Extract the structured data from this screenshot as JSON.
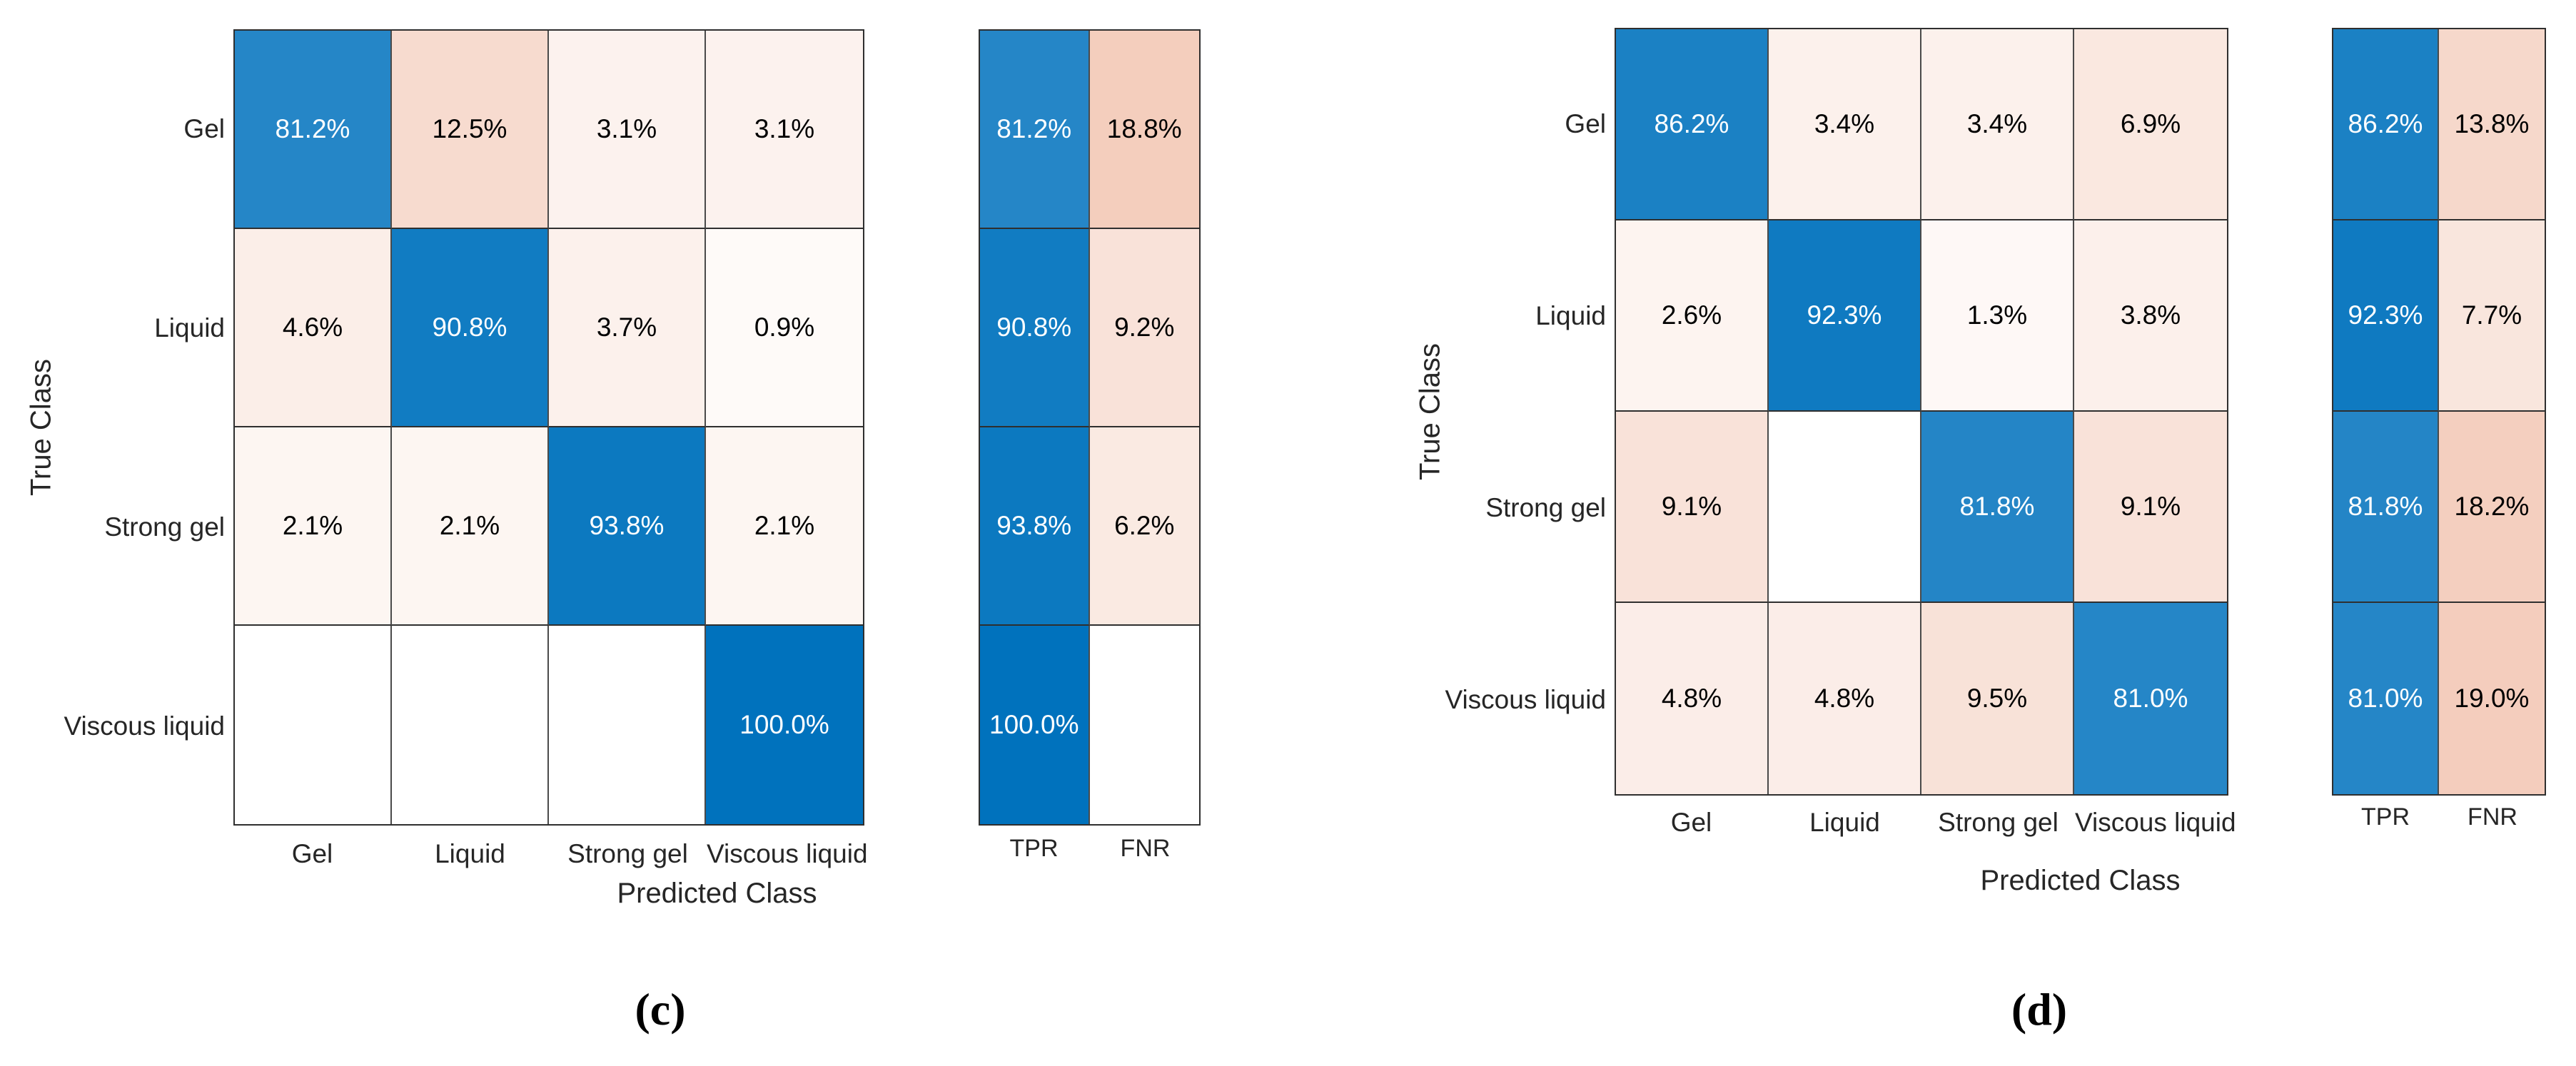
{
  "colors": {
    "diagonal_base": "#0072BD",
    "off_diagonal_base": "#D95319",
    "text_on_diagonal": "#FFFFFF",
    "text_on_off_diagonal": "#000000",
    "grid_line": "#2F2F2F"
  },
  "panels": [
    {
      "id": "c",
      "caption": "(c)",
      "x_axis_title": "Predicted Class",
      "y_axis_title": "True Class",
      "row_labels": [
        "Gel",
        "Liquid",
        "Strong gel",
        "Viscous liquid"
      ],
      "col_labels": [
        "Gel",
        "Liquid",
        "Strong gel",
        "Viscous liquid"
      ],
      "summary_col_labels": [
        "TPR",
        "FNR"
      ],
      "cells": [
        [
          {
            "label": "81.2%",
            "bg": "#2586C7",
            "fg": "#FFFFFF"
          },
          {
            "label": "12.5%",
            "bg": "#F7DBCF",
            "fg": "#000000"
          },
          {
            "label": "3.1%",
            "bg": "#FCF2EE",
            "fg": "#000000"
          },
          {
            "label": "3.1%",
            "bg": "#FCF2EE",
            "fg": "#000000"
          }
        ],
        [
          {
            "label": "4.6%",
            "bg": "#FBEEE8",
            "fg": "#000000"
          },
          {
            "label": "90.8%",
            "bg": "#117CC2",
            "fg": "#FFFFFF"
          },
          {
            "label": "3.7%",
            "bg": "#FCF1EC",
            "fg": "#000000"
          },
          {
            "label": "0.9%",
            "bg": "#FEFAF8",
            "fg": "#000000"
          }
        ],
        [
          {
            "label": "2.1%",
            "bg": "#FDF6F2",
            "fg": "#000000"
          },
          {
            "label": "2.1%",
            "bg": "#FDF6F2",
            "fg": "#000000"
          },
          {
            "label": "93.8%",
            "bg": "#0C79C0",
            "fg": "#FFFFFF"
          },
          {
            "label": "2.1%",
            "bg": "#FDF6F2",
            "fg": "#000000"
          }
        ],
        [
          {
            "label": "",
            "bg": "#FFFFFF",
            "fg": "#000000"
          },
          {
            "label": "",
            "bg": "#FFFFFF",
            "fg": "#000000"
          },
          {
            "label": "",
            "bg": "#FFFFFF",
            "fg": "#000000"
          },
          {
            "label": "100.0%",
            "bg": "#0072BD",
            "fg": "#FFFFFF"
          }
        ]
      ],
      "summary_cells": [
        [
          {
            "label": "81.2%",
            "bg": "#2586C7",
            "fg": "#FFFFFF"
          },
          {
            "label": "18.8%",
            "bg": "#F4CEBD",
            "fg": "#000000"
          }
        ],
        [
          {
            "label": "90.8%",
            "bg": "#117CC2",
            "fg": "#FFFFFF"
          },
          {
            "label": "9.2%",
            "bg": "#F9E2D9",
            "fg": "#000000"
          }
        ],
        [
          {
            "label": "93.8%",
            "bg": "#0C79C0",
            "fg": "#FFFFFF"
          },
          {
            "label": "6.2%",
            "bg": "#FAEAE2",
            "fg": "#000000"
          }
        ],
        [
          {
            "label": "100.0%",
            "bg": "#0072BD",
            "fg": "#FFFFFF"
          },
          {
            "label": "",
            "bg": "#FFFFFF",
            "fg": "#000000"
          }
        ]
      ]
    },
    {
      "id": "d",
      "caption": "(d)",
      "x_axis_title": "Predicted Class",
      "y_axis_title": "True Class",
      "row_labels": [
        "Gel",
        "Liquid",
        "Strong gel",
        "Viscous liquid"
      ],
      "col_labels": [
        "Gel",
        "Liquid",
        "Strong gel",
        "Viscous liquid"
      ],
      "summary_col_labels": [
        "TPR",
        "FNR"
      ],
      "cells": [
        [
          {
            "label": "86.2%",
            "bg": "#1B81C4",
            "fg": "#FFFFFF"
          },
          {
            "label": "3.4%",
            "bg": "#FCF1EC",
            "fg": "#000000"
          },
          {
            "label": "3.4%",
            "bg": "#FCF1EC",
            "fg": "#000000"
          },
          {
            "label": "6.9%",
            "bg": "#FAE8E0",
            "fg": "#000000"
          }
        ],
        [
          {
            "label": "2.6%",
            "bg": "#FDF4F0",
            "fg": "#000000"
          },
          {
            "label": "92.3%",
            "bg": "#0F7AC1",
            "fg": "#FFFFFF"
          },
          {
            "label": "1.3%",
            "bg": "#FEF8F6",
            "fg": "#000000"
          },
          {
            "label": "3.8%",
            "bg": "#FCF0EB",
            "fg": "#000000"
          }
        ],
        [
          {
            "label": "9.1%",
            "bg": "#F9E2D9",
            "fg": "#000000"
          },
          {
            "label": "",
            "bg": "#FFFFFF",
            "fg": "#000000"
          },
          {
            "label": "81.8%",
            "bg": "#2485C6",
            "fg": "#FFFFFF"
          },
          {
            "label": "9.1%",
            "bg": "#F9E2D9",
            "fg": "#000000"
          }
        ],
        [
          {
            "label": "4.8%",
            "bg": "#FBEDE8",
            "fg": "#000000"
          },
          {
            "label": "4.8%",
            "bg": "#FBEDE8",
            "fg": "#000000"
          },
          {
            "label": "9.5%",
            "bg": "#F8E2D8",
            "fg": "#000000"
          },
          {
            "label": "81.0%",
            "bg": "#2586C7",
            "fg": "#FFFFFF"
          }
        ]
      ],
      "summary_cells": [
        [
          {
            "label": "86.2%",
            "bg": "#1B81C4",
            "fg": "#FFFFFF"
          },
          {
            "label": "13.8%",
            "bg": "#F6D8CB",
            "fg": "#000000"
          }
        ],
        [
          {
            "label": "92.3%",
            "bg": "#0F7AC1",
            "fg": "#FFFFFF"
          },
          {
            "label": "7.7%",
            "bg": "#F9E6DD",
            "fg": "#000000"
          }
        ],
        [
          {
            "label": "81.8%",
            "bg": "#2485C6",
            "fg": "#FFFFFF"
          },
          {
            "label": "18.2%",
            "bg": "#F4CFBF",
            "fg": "#000000"
          }
        ],
        [
          {
            "label": "81.0%",
            "bg": "#2586C7",
            "fg": "#FFFFFF"
          },
          {
            "label": "19.0%",
            "bg": "#F4CDBD",
            "fg": "#000000"
          }
        ]
      ]
    }
  ],
  "chart_data": [
    {
      "type": "heatmap",
      "subtype": "confusion-matrix-row-normalized",
      "title": "(c)",
      "xlabel": "Predicted Class",
      "ylabel": "True Class",
      "classes": [
        "Gel",
        "Liquid",
        "Strong gel",
        "Viscous liquid"
      ],
      "matrix_percent": [
        [
          81.2,
          12.5,
          3.1,
          3.1
        ],
        [
          4.6,
          90.8,
          3.7,
          0.9
        ],
        [
          2.1,
          2.1,
          93.8,
          2.1
        ],
        [
          0,
          0,
          0,
          100.0
        ]
      ],
      "tpr_percent": [
        81.2,
        90.8,
        93.8,
        100.0
      ],
      "fnr_percent": [
        18.8,
        9.2,
        6.2,
        0
      ],
      "summary_columns": [
        "TPR",
        "FNR"
      ],
      "legend_position": "none",
      "grid": true
    },
    {
      "type": "heatmap",
      "subtype": "confusion-matrix-row-normalized",
      "title": "(d)",
      "xlabel": "Predicted Class",
      "ylabel": "True Class",
      "classes": [
        "Gel",
        "Liquid",
        "Strong gel",
        "Viscous liquid"
      ],
      "matrix_percent": [
        [
          86.2,
          3.4,
          3.4,
          6.9
        ],
        [
          2.6,
          92.3,
          1.3,
          3.8
        ],
        [
          9.1,
          0,
          81.8,
          9.1
        ],
        [
          4.8,
          4.8,
          9.5,
          81.0
        ]
      ],
      "tpr_percent": [
        86.2,
        92.3,
        81.8,
        81.0
      ],
      "fnr_percent": [
        13.8,
        7.7,
        18.2,
        19.0
      ],
      "summary_columns": [
        "TPR",
        "FNR"
      ],
      "legend_position": "none",
      "grid": true
    }
  ]
}
